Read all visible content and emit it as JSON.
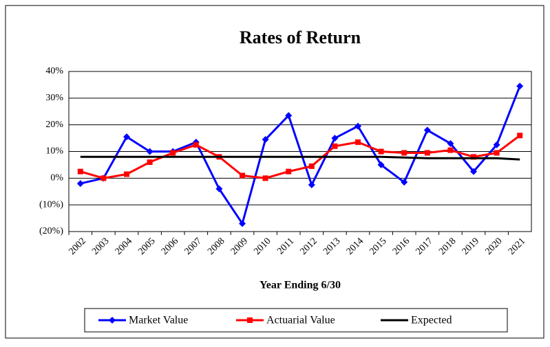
{
  "chart_data": {
    "type": "line",
    "title": "Rates of Return",
    "x_label": "Year Ending 6/30",
    "categories": [
      "2002",
      "2003",
      "2004",
      "2005",
      "2006",
      "2007",
      "2008",
      "2009",
      "2010",
      "2011",
      "2012",
      "2013",
      "2014",
      "2015",
      "2016",
      "2017",
      "2018",
      "2019",
      "2020",
      "2021"
    ],
    "series": [
      {
        "name": "Market Value",
        "color": "#0000ff",
        "marker": "diamond",
        "values": [
          -2,
          0,
          15.5,
          10,
          10,
          13.5,
          -4,
          -17,
          14.5,
          23.5,
          -2.5,
          15,
          19.5,
          5,
          -1.5,
          18,
          13,
          2.5,
          12.5,
          34.5
        ]
      },
      {
        "name": "Actuarial Value",
        "color": "#ff0000",
        "marker": "square",
        "values": [
          2.5,
          0,
          1.5,
          6,
          9.5,
          12.5,
          8,
          1,
          0,
          2.5,
          4.5,
          12,
          13.5,
          10,
          9.5,
          9.5,
          10.5,
          8,
          9.5,
          16
        ]
      },
      {
        "name": "Expected",
        "color": "#000000",
        "marker": "none",
        "values": [
          8,
          8,
          8,
          8,
          8,
          8,
          8,
          8,
          8,
          8,
          8,
          8,
          8,
          8,
          7.75,
          7.5,
          7.5,
          7.5,
          7.5,
          7
        ]
      }
    ],
    "ylim": [
      -20,
      40
    ],
    "yticks": [
      {
        "value": -20,
        "label": "(20%)"
      },
      {
        "value": -10,
        "label": "(10%)"
      },
      {
        "value": 0,
        "label": "0%"
      },
      {
        "value": 10,
        "label": "10%"
      },
      {
        "value": 20,
        "label": "20%"
      },
      {
        "value": 30,
        "label": "30%"
      },
      {
        "value": 40,
        "label": "40%"
      }
    ],
    "grid": true,
    "legend": "bottom"
  }
}
